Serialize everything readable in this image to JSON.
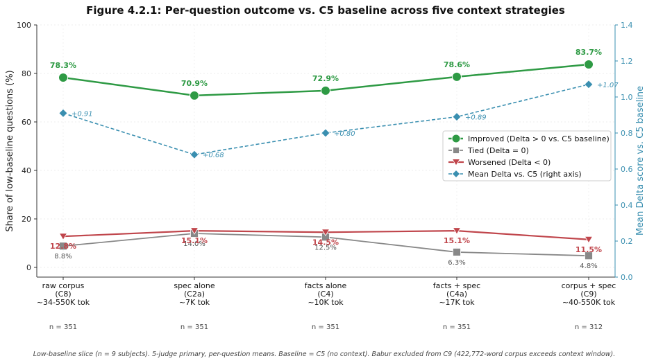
{
  "chart_data": {
    "type": "line",
    "title": "Figure 4.2.1: Per-question outcome vs. C5 baseline across five context strategies",
    "ylabel": "Share of low-baseline questions  (%)",
    "ylabel_right": "Mean Delta score vs. C5 baseline",
    "ylim": [
      0,
      100
    ],
    "ylim_right": [
      0,
      1.4
    ],
    "yticks": [
      "0",
      "20",
      "40",
      "60",
      "80",
      "100"
    ],
    "yticks_right": [
      "0.0",
      "0.2",
      "0.4",
      "0.6",
      "0.8",
      "1.0",
      "1.2",
      "1.4"
    ],
    "categories": [
      {
        "lines": [
          "raw corpus",
          "(C8)",
          "~34-550K tok"
        ],
        "n": "n = 351"
      },
      {
        "lines": [
          "spec alone",
          "(C2a)",
          "~7K tok"
        ],
        "n": "n = 351"
      },
      {
        "lines": [
          "facts alone",
          "(C4)",
          "~10K tok"
        ],
        "n": "n = 351"
      },
      {
        "lines": [
          "facts + spec",
          "(C4a)",
          "~17K tok"
        ],
        "n": "n = 351"
      },
      {
        "lines": [
          "corpus + spec",
          "(C9)",
          "~40-550K tok"
        ],
        "n": "n = 312"
      }
    ],
    "series": [
      {
        "name": "Improved (Delta > 0 vs. C5 baseline)",
        "axis": "left",
        "color": "#2e9a44",
        "values": [
          78.3,
          70.9,
          72.9,
          78.6,
          83.7
        ],
        "labels": [
          "78.3%",
          "70.9%",
          "72.9%",
          "78.6%",
          "83.7%"
        ]
      },
      {
        "name": "Tied (Delta = 0)",
        "axis": "left",
        "color": "#888888",
        "values": [
          8.8,
          14.0,
          12.5,
          6.3,
          4.8
        ],
        "labels": [
          "8.8%",
          "14.0%",
          "12.5%",
          "6.3%",
          "4.8%"
        ]
      },
      {
        "name": "Worsened (Delta < 0)",
        "axis": "left",
        "color": "#c0464c",
        "values": [
          12.8,
          15.1,
          14.5,
          15.1,
          11.5
        ],
        "labels": [
          "12.8%",
          "15.1%",
          "14.5%",
          "15.1%",
          "11.5%"
        ]
      },
      {
        "name": "Mean Delta vs. C5 (right axis)",
        "axis": "right",
        "color": "#3a8fb0",
        "values": [
          0.91,
          0.68,
          0.8,
          0.89,
          1.07
        ],
        "labels": [
          "+0.91",
          "+0.68",
          "+0.80",
          "+0.89",
          "+1.07"
        ]
      }
    ],
    "legend_position": "right",
    "grid": true,
    "footnote": "Low-baseline slice (n = 9 subjects). 5-judge primary, per-question means. Baseline = C5 (no context). Babur excluded from C9 (422,772-word corpus exceeds context window)."
  }
}
